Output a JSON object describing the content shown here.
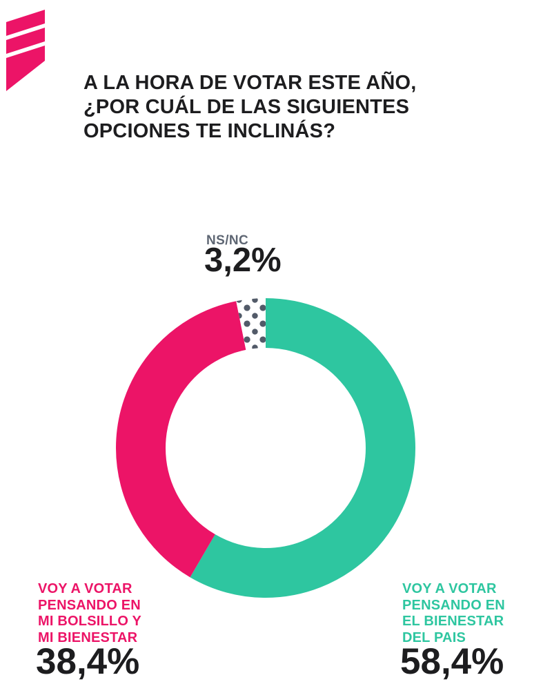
{
  "colors": {
    "background": "#FFFFFF",
    "pink": "#EC1467",
    "teal": "#2EC6A0",
    "ink": "#1D1D1F",
    "gray": "#5E6673",
    "dot": "#525A68"
  },
  "header": {
    "title_lines": [
      "A LA HORA DE VOTAR ESTE AÑO,",
      "¿POR CUÁL DE LAS SIGUIENTES",
      "OPCIONES TE INCLINÁS?"
    ]
  },
  "chart_data": {
    "type": "pie",
    "subtype": "donut",
    "title": "A LA HORA DE VOTAR ESTE AÑO, ¿POR CUÁL DE LAS SIGUIENTES OPCIONES TE INCLINÁS?",
    "unit": "%",
    "legend_position": "callouts-around-donut",
    "start_angle_note": "first slice starts at 12 o'clock, clockwise; dotted NS/NC slice ends at 12 o'clock",
    "slices": [
      {
        "label": "VOY A VOTAR PENSANDO EN EL BIENESTAR DEL PAIS",
        "value": 58.4,
        "display_value": "58,4%",
        "color": "#2EC6A0"
      },
      {
        "label": "VOY A VOTAR PENSANDO EN MI BOLSILLO Y MI BIENESTAR",
        "value": 38.4,
        "display_value": "38,4%",
        "color": "#EC1467"
      },
      {
        "label": "NS/NC",
        "value": 3.2,
        "display_value": "3,2%",
        "color": "#FFFFFF",
        "pattern": "dots",
        "dot_color": "#525A68"
      }
    ]
  },
  "callouts": {
    "nsnc": {
      "label": "NS/NC",
      "value": "3,2%"
    },
    "left": {
      "lines": [
        "VOY A VOTAR",
        "PENSANDO EN",
        "MI BOLSILLO Y",
        "MI BIENESTAR"
      ],
      "value": "38,4%"
    },
    "right": {
      "lines": [
        "VOY A VOTAR",
        "PENSANDO EN",
        "EL BIENESTAR",
        "DEL PAIS"
      ],
      "value": "58,4%"
    }
  }
}
